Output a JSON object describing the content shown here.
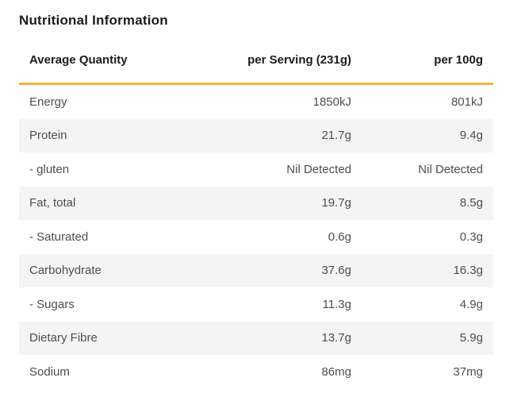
{
  "title": "Nutritional Information",
  "colors": {
    "accent": "#F3B53A",
    "stripe": "#F4F4F4"
  },
  "table": {
    "columns": {
      "label": "Average Quantity",
      "per_serving": "per Serving (231g)",
      "per_100g": "per 100g"
    },
    "rows": [
      {
        "label": "Energy",
        "per_serving": "1850kJ",
        "per_100g": "801kJ"
      },
      {
        "label": "Protein",
        "per_serving": "21.7g",
        "per_100g": "9.4g"
      },
      {
        "label": "- gluten",
        "per_serving": "Nil Detected",
        "per_100g": "Nil Detected"
      },
      {
        "label": "Fat, total",
        "per_serving": "19.7g",
        "per_100g": "8.5g"
      },
      {
        "label": "- Saturated",
        "per_serving": "0.6g",
        "per_100g": "0.3g"
      },
      {
        "label": "Carbohydrate",
        "per_serving": "37.6g",
        "per_100g": "16.3g"
      },
      {
        "label": "- Sugars",
        "per_serving": "11.3g",
        "per_100g": "4.9g"
      },
      {
        "label": "Dietary Fibre",
        "per_serving": "13.7g",
        "per_100g": "5.9g"
      },
      {
        "label": "Sodium",
        "per_serving": "86mg",
        "per_100g": "37mg"
      }
    ]
  }
}
